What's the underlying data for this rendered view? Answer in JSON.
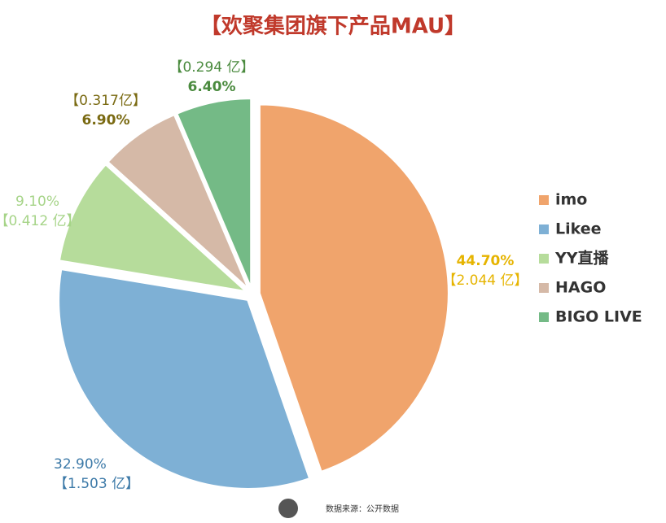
{
  "chart_data": {
    "type": "pie",
    "title": "【欢聚集团旗下产品MAU】",
    "categories": [
      "imo",
      "Likee",
      "YY直播",
      "HAGO",
      "BIGO LIVE"
    ],
    "values": [
      44.7,
      32.9,
      9.1,
      6.9,
      6.4
    ],
    "value_labels": [
      "44.70%",
      "32.90%",
      "9.10%",
      "6.90%",
      "6.40%"
    ],
    "mau_values": [
      2.044,
      1.503,
      0.412,
      0.317,
      0.294
    ],
    "mau_labels": [
      "【2.044 亿】",
      "【1.503 亿】",
      "【0.412 亿】",
      "【0.317亿】",
      "【0.294 亿】"
    ],
    "colors": [
      "#f0a46c",
      "#7eb0d5",
      "#b6dc9b",
      "#d5b9a7",
      "#74ba86"
    ],
    "label_colors": [
      "#e6b400",
      "#3d7aa8",
      "#a6d488",
      "#7a6a12",
      "#4b8b3f"
    ],
    "source": "数据来源：公开数据"
  }
}
